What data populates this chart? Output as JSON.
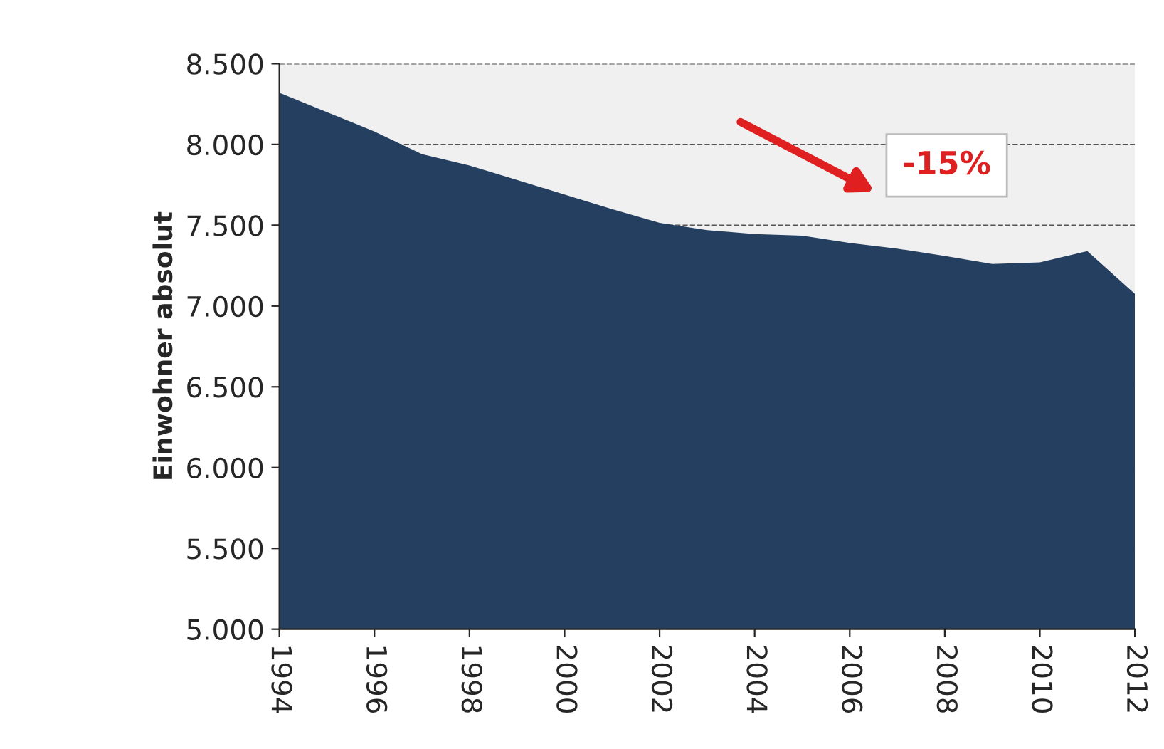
{
  "chart_data": {
    "type": "area",
    "ylabel": "Einwohner absolut",
    "x": [
      1994,
      1995,
      1996,
      1997,
      1998,
      1999,
      2000,
      2001,
      2002,
      2003,
      2004,
      2005,
      2006,
      2007,
      2008,
      2009,
      2010,
      2011,
      2012
    ],
    "series": [
      {
        "color": "#243f60",
        "values": [
          8320,
          8200,
          8080,
          7940,
          7870,
          7780,
          7690,
          7600,
          7515,
          7470,
          7445,
          7435,
          7390,
          7355,
          7310,
          7260,
          7270,
          7340,
          7075
        ]
      }
    ],
    "xlim": [
      1994,
      2012
    ],
    "xticks": [
      1994,
      1996,
      1998,
      2000,
      2002,
      2004,
      2006,
      2008,
      2010,
      2012
    ],
    "ylim": [
      5000,
      8500
    ],
    "yticks": [
      {
        "value": 5000,
        "label": "5.000"
      },
      {
        "value": 5500,
        "label": "5.500"
      },
      {
        "value": 6000,
        "label": "6.000"
      },
      {
        "value": 6500,
        "label": "6.500"
      },
      {
        "value": 7000,
        "label": "7.000"
      },
      {
        "value": 7500,
        "label": "7.500"
      },
      {
        "value": 8000,
        "label": "8.000"
      },
      {
        "value": 8500,
        "label": "8.500"
      }
    ],
    "grid": "y",
    "annotations": [
      "-15%"
    ]
  }
}
